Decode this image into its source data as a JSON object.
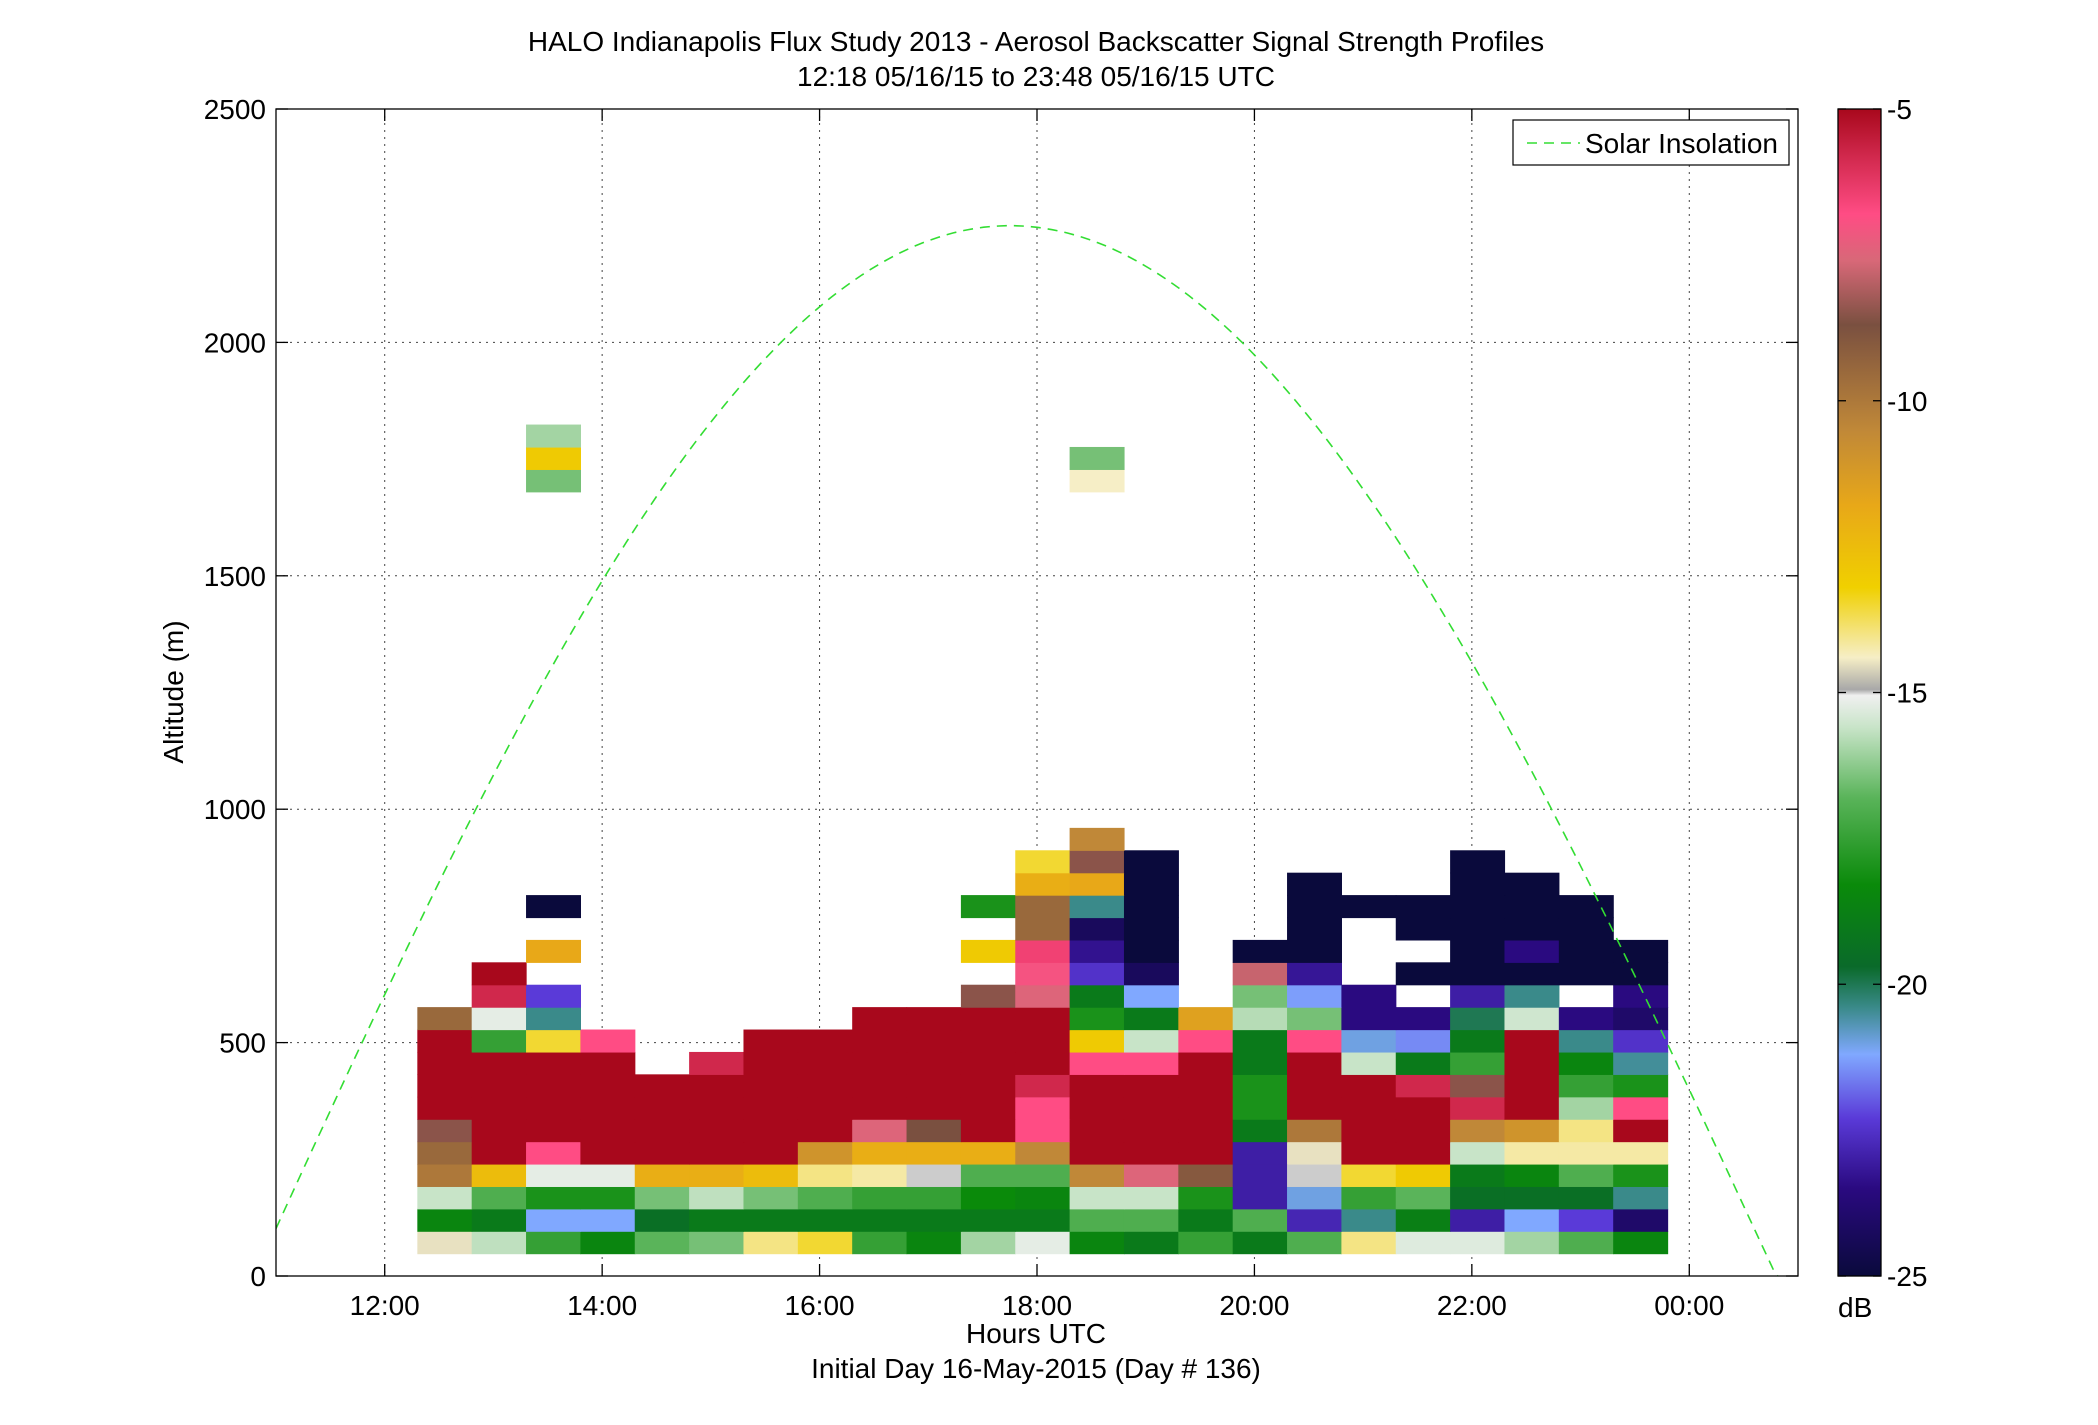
{
  "chart_data": {
    "type": "heatmap",
    "title": "HALO Indianapolis Flux Study 2013 - Aerosol Backscatter Signal Strength Profiles",
    "subtitle": "12:18 05/16/15 to 23:48 05/16/15  UTC",
    "xlabel": "Hours UTC",
    "xlabel2": "Initial Day 16-May-2015 (Day # 136)",
    "ylabel": "Altitude (m)",
    "xlim": [
      11.0,
      25.0
    ],
    "ylim": [
      0,
      2500
    ],
    "x_ticks": [
      12,
      14,
      16,
      18,
      20,
      22,
      24
    ],
    "x_tick_labels": [
      "12:00",
      "14:00",
      "16:00",
      "18:00",
      "20:00",
      "22:00",
      "00:00"
    ],
    "y_ticks": [
      0,
      500,
      1000,
      1500,
      2000,
      2500
    ],
    "y_tick_labels": [
      "0",
      "500",
      "1000",
      "1500",
      "2000",
      "2500"
    ],
    "grid": true,
    "colorbar": {
      "label": "dB",
      "range": [
        -25,
        -5
      ],
      "ticks": [
        -25,
        -20,
        -15,
        -10,
        -5
      ],
      "tick_labels": [
        "-25",
        "-20",
        "-15",
        "-10",
        "-5"
      ],
      "stops": [
        {
          "v": -25.0,
          "color": "#0a0a3c"
        },
        {
          "v": -23.5,
          "color": "#2a0a80"
        },
        {
          "v": -22.3,
          "color": "#5a3ad8"
        },
        {
          "v": -21.2,
          "color": "#80a8ff"
        },
        {
          "v": -20.4,
          "color": "#3a8a8a"
        },
        {
          "v": -19.7,
          "color": "#0a6a2a"
        },
        {
          "v": -18.3,
          "color": "#0a8a0a"
        },
        {
          "v": -16.8,
          "color": "#5ab45a"
        },
        {
          "v": -15.6,
          "color": "#c8e4c8"
        },
        {
          "v": -15.05,
          "color": "#f0f0f0"
        },
        {
          "v": -14.95,
          "color": "#a8a8a8"
        },
        {
          "v": -14.4,
          "color": "#f6eec6"
        },
        {
          "v": -13.2,
          "color": "#f0d000"
        },
        {
          "v": -11.8,
          "color": "#e8a818"
        },
        {
          "v": -10.5,
          "color": "#c08838"
        },
        {
          "v": -8.7,
          "color": "#7a5040"
        },
        {
          "v": -7.6,
          "color": "#d86878"
        },
        {
          "v": -6.8,
          "color": "#ff4c84"
        },
        {
          "v": -5.8,
          "color": "#d0284c"
        },
        {
          "v": -5.0,
          "color": "#a8081c"
        }
      ]
    },
    "legend": {
      "position": "top-right",
      "entries": [
        {
          "name": "Solar Insolation",
          "style": "dashed",
          "color": "#33dd33"
        }
      ]
    },
    "insolation_curve": {
      "color": "#33dd33",
      "peak": [
        17.75,
        2250
      ],
      "zero_crossings": [
        10.8,
        24.8
      ]
    },
    "time_bins_start": [
      12.3,
      12.8,
      13.3,
      13.8,
      14.3,
      14.8,
      15.3,
      15.8,
      16.3,
      16.8,
      17.3,
      17.8,
      18.3,
      18.8,
      19.3,
      19.8,
      20.3,
      20.8,
      21.3,
      21.8,
      22.3,
      22.8,
      23.3
    ],
    "time_bin_width": 0.5,
    "altitude_bin_height": 48,
    "altitude_bins_bottom": [
      48,
      96,
      144,
      192,
      240,
      288,
      336,
      384,
      432,
      480,
      528,
      576,
      624,
      672,
      720,
      768,
      816,
      864,
      912,
      960,
      1680,
      1728,
      1776
    ],
    "cells": [
      [
        -14.5,
        -15.7,
        -17.5,
        -18.5,
        -16.8,
        -16.5,
        -14,
        -13.5,
        -17.5,
        -18.5,
        -16,
        -15.2,
        -18.5,
        -19,
        -17.5,
        -19,
        -17,
        -14,
        -15.3,
        -15.3,
        -16,
        -17,
        -18.5
      ],
      [
        -18.5,
        -19,
        -21.2,
        -21.2,
        -19.5,
        -19,
        -19,
        -19,
        -19,
        -19,
        -19,
        -19,
        -17,
        -17,
        -19,
        -17,
        -22.8,
        -20.4,
        -18.8,
        -23,
        -21.2,
        -22.3,
        -24
      ],
      [
        -15.6,
        -17,
        -18,
        -18,
        -16.5,
        -15.7,
        -16.5,
        -17,
        -17.5,
        -17.5,
        -18.3,
        -18.5,
        -15.6,
        -15.6,
        -18,
        -23,
        -21,
        -17.5,
        -16.8,
        -19.5,
        -19.5,
        -19.5,
        -20.4
      ],
      [
        -10,
        -12.5,
        -15.2,
        -15.2,
        -12,
        -12,
        -12.5,
        -14,
        -14.2,
        -15,
        -17,
        -17,
        -10.5,
        -7.5,
        -9,
        -23,
        -15,
        -13.5,
        -13,
        -19,
        -18.5,
        -17,
        -18
      ],
      [
        -9.5,
        -5,
        -6.8,
        -5,
        -5,
        -5,
        -5,
        -11,
        -12,
        -12,
        -12,
        -10.5,
        -5,
        -5,
        -5,
        -23,
        -14.5,
        -5,
        -5,
        -15.6,
        -14.2,
        -14.2,
        -14.2
      ],
      [
        -8.5,
        -5,
        -5,
        -5,
        -5,
        -5,
        -5,
        -5,
        -7.5,
        -8.7,
        -5,
        -6.8,
        -5,
        -5,
        -5,
        -19,
        -10,
        -5,
        -5,
        -10.5,
        -11,
        -14,
        -5
      ],
      [
        -5,
        -5,
        -5,
        -5,
        -5,
        -5,
        -5,
        -5,
        -5,
        -5,
        -5,
        -6.8,
        -5,
        -5,
        -5,
        -18,
        -5,
        -5,
        -5,
        -5.8,
        -5,
        -16,
        -6.8
      ],
      [
        -5,
        -5,
        -5,
        -5,
        -5,
        -5,
        -5,
        -5,
        -5,
        -5,
        -5,
        -5.8,
        -5,
        -5,
        -5,
        -18,
        -5,
        -5,
        -5.8,
        -8.5,
        -5,
        -17.5,
        -18
      ],
      [
        -5,
        -5,
        -5,
        -5,
        null,
        -5.8,
        -5,
        -5,
        -5,
        -5,
        -5,
        -5,
        -6.8,
        -6.8,
        -5,
        -19,
        -5,
        -15.6,
        -19,
        -17.5,
        -5,
        -18.5,
        -20.5
      ],
      [
        -5,
        -17.5,
        -13.5,
        -6.8,
        null,
        null,
        -5,
        -5,
        -5,
        -5,
        -5,
        -5,
        -13,
        -15.6,
        -6.8,
        -19,
        -6.8,
        -21,
        -21.5,
        -19,
        -5,
        -20.4,
        -22.5
      ],
      [
        -9.5,
        -15.2,
        -20.4,
        null,
        null,
        null,
        null,
        null,
        -5,
        -5,
        -5,
        -5,
        -18,
        -19,
        -11.5,
        -15.8,
        -16.5,
        -23.5,
        -23.5,
        -20,
        -15.5,
        -23.5,
        -24
      ],
      [
        null,
        -5.8,
        -22.3,
        null,
        null,
        null,
        null,
        null,
        null,
        null,
        -8.5,
        -7.5,
        -19,
        -21.2,
        null,
        -16.5,
        -21.3,
        -23.5,
        null,
        -23,
        -20.4,
        null,
        -23.5
      ],
      [
        null,
        -5,
        null,
        null,
        null,
        null,
        null,
        null,
        null,
        null,
        null,
        -7,
        -22.5,
        -24.3,
        null,
        -7.8,
        -23.2,
        null,
        -25,
        -25,
        -25,
        -25,
        -25
      ],
      [
        null,
        null,
        -11.8,
        null,
        null,
        null,
        null,
        null,
        null,
        null,
        -13,
        -6.5,
        -23.3,
        -25,
        null,
        -25,
        -25,
        null,
        null,
        -25,
        -23.5,
        -25,
        -25
      ],
      [
        null,
        null,
        null,
        null,
        null,
        null,
        null,
        null,
        null,
        null,
        null,
        -9.5,
        -24.3,
        -25,
        null,
        null,
        -25,
        null,
        -25,
        -25,
        -25,
        -25,
        null
      ],
      [
        null,
        null,
        -25,
        null,
        null,
        null,
        null,
        null,
        null,
        null,
        -18,
        -9.5,
        -20.4,
        -25,
        null,
        null,
        -25,
        -25,
        -25,
        -25,
        -25,
        -25,
        null
      ],
      [
        null,
        null,
        null,
        null,
        null,
        null,
        null,
        null,
        null,
        null,
        null,
        -12,
        -11.8,
        -25,
        null,
        null,
        -25,
        null,
        null,
        -25,
        -25,
        null,
        null
      ],
      [
        null,
        null,
        null,
        null,
        null,
        null,
        null,
        null,
        null,
        null,
        null,
        -13.5,
        -8.5,
        -25,
        null,
        null,
        null,
        null,
        null,
        -25,
        null,
        null,
        null
      ],
      [
        null,
        null,
        null,
        null,
        null,
        null,
        null,
        null,
        null,
        null,
        null,
        null,
        -10.5,
        null,
        null,
        null,
        null,
        null,
        null,
        null,
        null,
        null,
        null
      ],
      [
        null,
        null,
        null,
        null,
        null,
        null,
        null,
        null,
        null,
        null,
        null,
        null,
        null,
        null,
        null,
        null,
        null,
        null,
        null,
        null,
        null,
        null,
        null
      ],
      [
        null,
        null,
        -16.5,
        null,
        null,
        null,
        null,
        null,
        null,
        null,
        null,
        null,
        -14.4,
        null,
        null,
        null,
        null,
        null,
        null,
        null,
        null,
        null,
        null
      ],
      [
        null,
        null,
        -13,
        null,
        null,
        null,
        null,
        null,
        null,
        null,
        null,
        null,
        -16.5,
        null,
        null,
        null,
        null,
        null,
        null,
        null,
        null,
        null,
        null
      ],
      [
        null,
        null,
        -16,
        null,
        null,
        null,
        null,
        null,
        null,
        null,
        null,
        null,
        null,
        null,
        null,
        null,
        null,
        null,
        null,
        null,
        null,
        null,
        null
      ]
    ]
  }
}
